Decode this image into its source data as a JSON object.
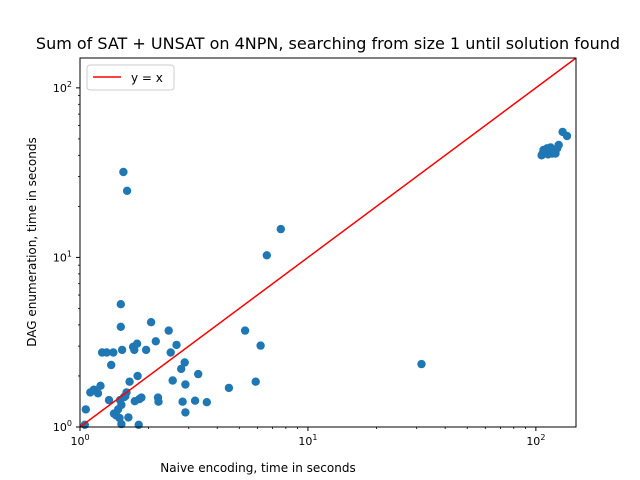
{
  "chart_data": {
    "type": "scatter",
    "title": "Sum of SAT + UNSAT on 4NPN, searching from size 1 until solution found",
    "xlabel": "Naive encoding, time in seconds",
    "ylabel": "DAG enumeration, time in seconds",
    "xscale": "log",
    "yscale": "log",
    "xlim": [
      1,
      150
    ],
    "ylim": [
      1,
      150
    ],
    "grid": false,
    "legend": {
      "placement": "upper-left",
      "entries": [
        "y = x"
      ]
    },
    "x_ticks": [
      {
        "value": 1,
        "base": "10",
        "exp": "0"
      },
      {
        "value": 10,
        "base": "10",
        "exp": "1"
      },
      {
        "value": 100,
        "base": "10",
        "exp": "2"
      }
    ],
    "y_ticks": [
      {
        "value": 1,
        "base": "10",
        "exp": "0"
      },
      {
        "value": 10,
        "base": "10",
        "exp": "1"
      },
      {
        "value": 100,
        "base": "10",
        "exp": "2"
      }
    ],
    "reference_line": {
      "name": "y = x",
      "color": "#ff0000",
      "points": [
        [
          1,
          1
        ],
        [
          150,
          150
        ]
      ]
    },
    "series": [
      {
        "color": "#1f77b4",
        "points": [
          [
            1.05,
            1.03
          ],
          [
            1.06,
            1.27
          ],
          [
            1.11,
            1.6
          ],
          [
            1.15,
            1.66
          ],
          [
            1.2,
            1.58
          ],
          [
            1.23,
            1.75
          ],
          [
            1.25,
            2.75
          ],
          [
            1.31,
            2.75
          ],
          [
            1.34,
            1.44
          ],
          [
            1.37,
            2.32
          ],
          [
            1.4,
            2.75
          ],
          [
            1.41,
            1.2
          ],
          [
            1.44,
            1.17
          ],
          [
            1.47,
            1.27
          ],
          [
            1.49,
            1.13
          ],
          [
            1.5,
            1.44
          ],
          [
            1.51,
            5.3
          ],
          [
            1.51,
            3.9
          ],
          [
            1.52,
            1.35
          ],
          [
            1.52,
            1.04
          ],
          [
            1.53,
            2.85
          ],
          [
            1.55,
            31.9
          ],
          [
            1.56,
            1.5
          ],
          [
            1.58,
            1.52
          ],
          [
            1.6,
            1.6
          ],
          [
            1.61,
            24.7
          ],
          [
            1.63,
            1.14
          ],
          [
            1.65,
            1.85
          ],
          [
            1.71,
            2.97
          ],
          [
            1.73,
            2.85
          ],
          [
            1.74,
            1.42
          ],
          [
            1.78,
            3.1
          ],
          [
            1.79,
            2.0
          ],
          [
            1.81,
            1.03
          ],
          [
            1.82,
            1.46
          ],
          [
            1.86,
            1.49
          ],
          [
            1.95,
            2.85
          ],
          [
            2.05,
            4.15
          ],
          [
            2.15,
            3.2
          ],
          [
            2.2,
            1.49
          ],
          [
            2.21,
            1.41
          ],
          [
            2.45,
            3.7
          ],
          [
            2.5,
            2.75
          ],
          [
            2.55,
            1.88
          ],
          [
            2.65,
            3.05
          ],
          [
            2.78,
            2.2
          ],
          [
            2.82,
            1.41
          ],
          [
            2.88,
            2.4
          ],
          [
            2.9,
            1.78
          ],
          [
            2.9,
            1.22
          ],
          [
            3.2,
            1.43
          ],
          [
            3.3,
            2.05
          ],
          [
            3.6,
            1.4
          ],
          [
            4.5,
            1.7
          ],
          [
            5.3,
            3.7
          ],
          [
            5.9,
            1.85
          ],
          [
            6.2,
            3.02
          ],
          [
            6.6,
            10.3
          ],
          [
            7.6,
            14.7
          ],
          [
            31.5,
            2.35
          ],
          [
            106,
            40
          ],
          [
            107,
            41
          ],
          [
            108,
            43
          ],
          [
            110,
            42
          ],
          [
            112,
            44
          ],
          [
            113,
            40.5
          ],
          [
            115,
            43
          ],
          [
            116,
            44.5
          ],
          [
            118,
            41
          ],
          [
            119,
            42.5
          ],
          [
            121,
            43
          ],
          [
            122,
            41
          ],
          [
            124,
            44
          ],
          [
            126,
            46
          ],
          [
            131,
            55
          ],
          [
            137,
            52
          ]
        ]
      }
    ]
  }
}
